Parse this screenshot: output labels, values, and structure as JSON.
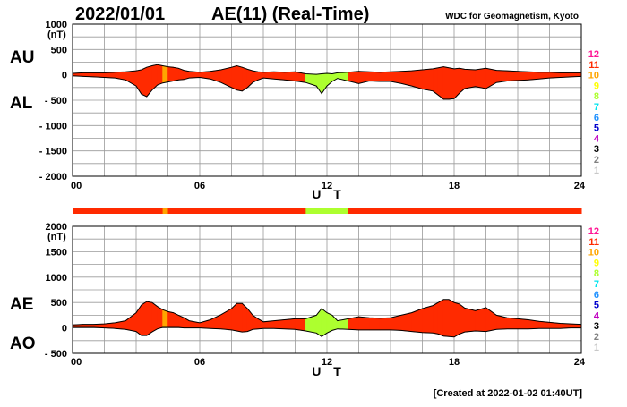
{
  "header": {
    "date": "2022/01/01",
    "title": "AE(11) (Real-Time)",
    "credit": "WDC for Geomagnetism, Kyoto"
  },
  "footer": {
    "created": "[Created at 2022-01-02 01:40UT]"
  },
  "colors": {
    "trace": "#000000",
    "station_scale": [
      {
        "label": "12",
        "color": "#ff1493"
      },
      {
        "label": "11",
        "color": "#ff2a00"
      },
      {
        "label": "10",
        "color": "#ffa500"
      },
      {
        "label": "9",
        "color": "#ffff00"
      },
      {
        "label": "8",
        "color": "#adff2f"
      },
      {
        "label": "7",
        "color": "#00e5ee"
      },
      {
        "label": "6",
        "color": "#1e90ff"
      },
      {
        "label": "5",
        "color": "#0000cd"
      },
      {
        "label": "4",
        "color": "#c000c0"
      },
      {
        "label": "3",
        "color": "#000000"
      },
      {
        "label": "2",
        "color": "#808080"
      },
      {
        "label": "1",
        "color": "#c8c8c8"
      }
    ]
  },
  "chart_data": [
    {
      "type": "area",
      "panel": "AU/AL",
      "series_labels": {
        "upper": "AU",
        "lower": "AL"
      },
      "unit": "(nT)",
      "xlabel": "U T",
      "xlim": [
        0,
        24
      ],
      "xticks": [
        "00",
        "06",
        "12",
        "18",
        "24"
      ],
      "ylim": [
        -2000,
        1000
      ],
      "yticks": [
        "1000",
        "500",
        "0",
        "- 500",
        "- 1000",
        "- 1500",
        "- 2000"
      ],
      "ytick_values": [
        1000,
        500,
        0,
        -500,
        -1000,
        -1500,
        -2000
      ],
      "grid": true,
      "x": [
        0,
        0.5,
        1,
        1.5,
        2,
        2.5,
        3,
        3.25,
        3.5,
        3.75,
        4,
        4.25,
        4.5,
        4.75,
        5,
        5.25,
        5.5,
        6,
        6.5,
        7,
        7.5,
        7.75,
        8,
        8.25,
        8.5,
        8.75,
        9,
        9.5,
        10,
        10.5,
        11,
        11.5,
        11.75,
        12,
        12.25,
        12.5,
        13,
        13.5,
        14,
        14.5,
        15,
        15.5,
        16,
        16.5,
        17,
        17.25,
        17.5,
        17.75,
        18,
        18.25,
        18.5,
        19,
        19.5,
        20,
        20.5,
        21,
        21.5,
        22,
        22.5,
        23,
        23.5,
        24
      ],
      "upper": [
        30,
        40,
        40,
        40,
        50,
        60,
        80,
        100,
        150,
        180,
        200,
        180,
        160,
        150,
        130,
        90,
        70,
        50,
        70,
        100,
        150,
        180,
        150,
        110,
        80,
        60,
        50,
        60,
        50,
        60,
        20,
        10,
        20,
        30,
        20,
        40,
        50,
        70,
        60,
        50,
        60,
        70,
        80,
        100,
        120,
        140,
        160,
        140,
        120,
        130,
        110,
        100,
        130,
        90,
        80,
        70,
        60,
        50,
        50,
        40,
        40,
        40
      ],
      "lower": [
        -20,
        -30,
        -40,
        -50,
        -60,
        -100,
        -220,
        -380,
        -430,
        -300,
        -200,
        -160,
        -140,
        -120,
        -100,
        -90,
        -60,
        -50,
        -80,
        -150,
        -250,
        -300,
        -320,
        -250,
        -150,
        -100,
        -60,
        -80,
        -100,
        -120,
        -150,
        -220,
        -370,
        -220,
        -130,
        -70,
        -120,
        -170,
        -120,
        -130,
        -130,
        -170,
        -220,
        -280,
        -320,
        -400,
        -480,
        -480,
        -470,
        -360,
        -270,
        -230,
        -270,
        -150,
        -120,
        -110,
        -100,
        -80,
        -60,
        -50,
        -40,
        -30
      ],
      "station_count": [
        11,
        11,
        11,
        11,
        11,
        11,
        11,
        11,
        11,
        11,
        11,
        10,
        11,
        11,
        11,
        11,
        11,
        11,
        11,
        11,
        11,
        11,
        11,
        11,
        11,
        11,
        11,
        11,
        11,
        11,
        8,
        8,
        8,
        8,
        8,
        8,
        11,
        11,
        11,
        11,
        11,
        11,
        11,
        11,
        11,
        11,
        11,
        11,
        11,
        11,
        11,
        11,
        11,
        11,
        11,
        11,
        11,
        11,
        11,
        11,
        11,
        11
      ]
    },
    {
      "type": "area",
      "panel": "AE/AO",
      "series_labels": {
        "upper": "AE",
        "lower": "AO"
      },
      "unit": "(nT)",
      "xlabel": "U T",
      "xlim": [
        0,
        24
      ],
      "xticks": [
        "00",
        "06",
        "12",
        "18",
        "24"
      ],
      "ylim": [
        -500,
        2000
      ],
      "yticks": [
        "2000",
        "1500",
        "1000",
        "500",
        "0",
        "- 500"
      ],
      "ytick_values": [
        2000,
        1500,
        1000,
        500,
        0,
        -500
      ],
      "grid": true,
      "x": [
        0,
        0.5,
        1,
        1.5,
        2,
        2.5,
        3,
        3.25,
        3.5,
        3.75,
        4,
        4.25,
        4.5,
        4.75,
        5,
        5.25,
        5.5,
        6,
        6.5,
        7,
        7.5,
        7.75,
        8,
        8.25,
        8.5,
        8.75,
        9,
        9.5,
        10,
        10.5,
        11,
        11.5,
        11.75,
        12,
        12.25,
        12.5,
        13,
        13.5,
        14,
        14.5,
        15,
        15.5,
        16,
        16.5,
        17,
        17.25,
        17.5,
        17.75,
        18,
        18.25,
        18.5,
        19,
        19.5,
        20,
        20.5,
        21,
        21.5,
        22,
        22.5,
        23,
        23.5,
        24
      ],
      "upper": [
        60,
        70,
        70,
        80,
        100,
        140,
        300,
        450,
        520,
        500,
        420,
        360,
        320,
        300,
        250,
        200,
        140,
        100,
        160,
        260,
        380,
        480,
        480,
        380,
        250,
        180,
        120,
        140,
        160,
        180,
        180,
        250,
        380,
        300,
        250,
        140,
        180,
        220,
        200,
        190,
        200,
        250,
        300,
        380,
        440,
        500,
        560,
        560,
        500,
        470,
        390,
        340,
        400,
        250,
        200,
        180,
        160,
        130,
        110,
        90,
        80,
        70
      ],
      "lower": [
        10,
        10,
        10,
        0,
        -10,
        -30,
        -70,
        -150,
        -150,
        -80,
        -20,
        10,
        10,
        10,
        10,
        0,
        0,
        0,
        -10,
        -20,
        -40,
        -60,
        -80,
        -70,
        -30,
        -20,
        -10,
        -10,
        -20,
        -30,
        -60,
        -100,
        -170,
        -100,
        -50,
        -20,
        -30,
        -40,
        -40,
        -40,
        -40,
        -50,
        -70,
        -90,
        -100,
        -120,
        -160,
        -170,
        -180,
        -120,
        -80,
        -60,
        -70,
        -30,
        -20,
        -20,
        -20,
        -10,
        -10,
        -10,
        0,
        0
      ],
      "station_count": [
        11,
        11,
        11,
        11,
        11,
        11,
        11,
        11,
        11,
        11,
        11,
        10,
        11,
        11,
        11,
        11,
        11,
        11,
        11,
        11,
        11,
        11,
        11,
        11,
        11,
        11,
        11,
        11,
        11,
        11,
        8,
        8,
        8,
        8,
        8,
        8,
        11,
        11,
        11,
        11,
        11,
        11,
        11,
        11,
        11,
        11,
        11,
        11,
        11,
        11,
        11,
        11,
        11,
        11,
        11,
        11,
        11,
        11,
        11,
        11,
        11,
        11
      ]
    }
  ]
}
